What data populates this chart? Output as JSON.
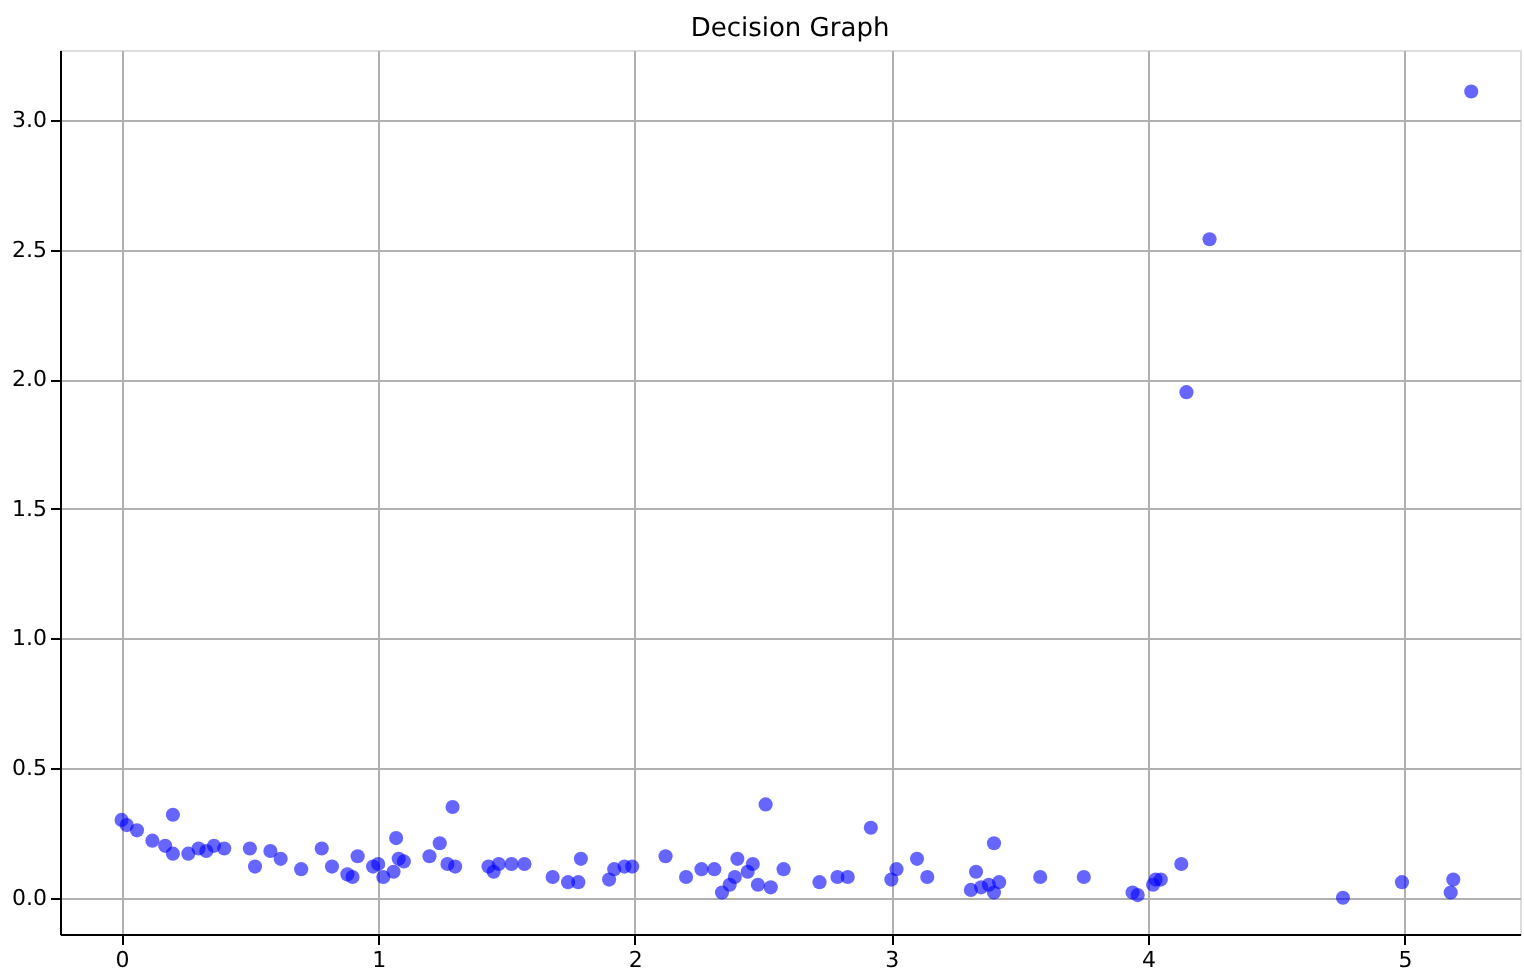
{
  "chart_data": {
    "type": "scatter",
    "title": "Decision Graph",
    "x": [
      0.0,
      0.02,
      0.06,
      0.12,
      0.17,
      0.2,
      0.2,
      0.26,
      0.3,
      0.33,
      0.36,
      0.4,
      0.5,
      0.52,
      0.58,
      0.62,
      0.7,
      0.78,
      0.82,
      0.88,
      0.9,
      0.92,
      0.98,
      1.0,
      1.02,
      1.06,
      1.07,
      1.08,
      1.1,
      1.2,
      1.24,
      1.27,
      1.29,
      1.3,
      1.43,
      1.45,
      1.47,
      1.52,
      1.57,
      1.68,
      1.74,
      1.78,
      1.79,
      1.9,
      1.92,
      1.96,
      1.99,
      2.12,
      2.2,
      2.26,
      2.31,
      2.34,
      2.37,
      2.39,
      2.4,
      2.44,
      2.46,
      2.48,
      2.51,
      2.53,
      2.58,
      2.72,
      2.79,
      2.83,
      2.92,
      3.0,
      3.02,
      3.1,
      3.14,
      3.31,
      3.33,
      3.35,
      3.38,
      3.4,
      3.4,
      3.42,
      3.58,
      3.75,
      3.94,
      3.96,
      4.02,
      4.03,
      4.05,
      4.13,
      4.15,
      4.24,
      4.76,
      4.99,
      5.18,
      5.19,
      5.26
    ],
    "series": [
      {
        "color": "#0000ff",
        "values": [
          0.3,
          0.28,
          0.26,
          0.22,
          0.2,
          0.32,
          0.17,
          0.17,
          0.19,
          0.18,
          0.2,
          0.19,
          0.19,
          0.12,
          0.18,
          0.15,
          0.11,
          0.19,
          0.12,
          0.09,
          0.08,
          0.16,
          0.12,
          0.13,
          0.08,
          0.1,
          0.23,
          0.15,
          0.14,
          0.16,
          0.21,
          0.13,
          0.35,
          0.12,
          0.12,
          0.1,
          0.13,
          0.13,
          0.13,
          0.08,
          0.06,
          0.06,
          0.15,
          0.07,
          0.11,
          0.12,
          0.12,
          0.16,
          0.08,
          0.11,
          0.11,
          0.02,
          0.05,
          0.08,
          0.15,
          0.1,
          0.13,
          0.05,
          0.36,
          0.04,
          0.11,
          0.06,
          0.08,
          0.08,
          0.27,
          0.07,
          0.11,
          0.15,
          0.08,
          0.03,
          0.1,
          0.04,
          0.05,
          0.21,
          0.02,
          0.06,
          0.08,
          0.08,
          0.02,
          0.01,
          0.05,
          0.07,
          0.07,
          0.13,
          1.95,
          2.54,
          0.0,
          0.06,
          0.02,
          0.07,
          3.11
        ]
      }
    ],
    "xlim": [
      -0.24,
      5.45
    ],
    "ylim": [
      -0.14,
      3.27
    ],
    "xticks": [
      0,
      1,
      2,
      3,
      4,
      5
    ],
    "yticks": [
      {
        "value": 0,
        "label": "0.0"
      },
      {
        "value": 0.5,
        "label": "0.5"
      },
      {
        "value": 1,
        "label": "1.0"
      },
      {
        "value": 1.5,
        "label": "1.5"
      },
      {
        "value": 2,
        "label": "2.0"
      },
      {
        "value": 2.5,
        "label": "2.5"
      },
      {
        "value": 3,
        "label": "3.0"
      }
    ],
    "grid": true,
    "marker": "circle"
  }
}
